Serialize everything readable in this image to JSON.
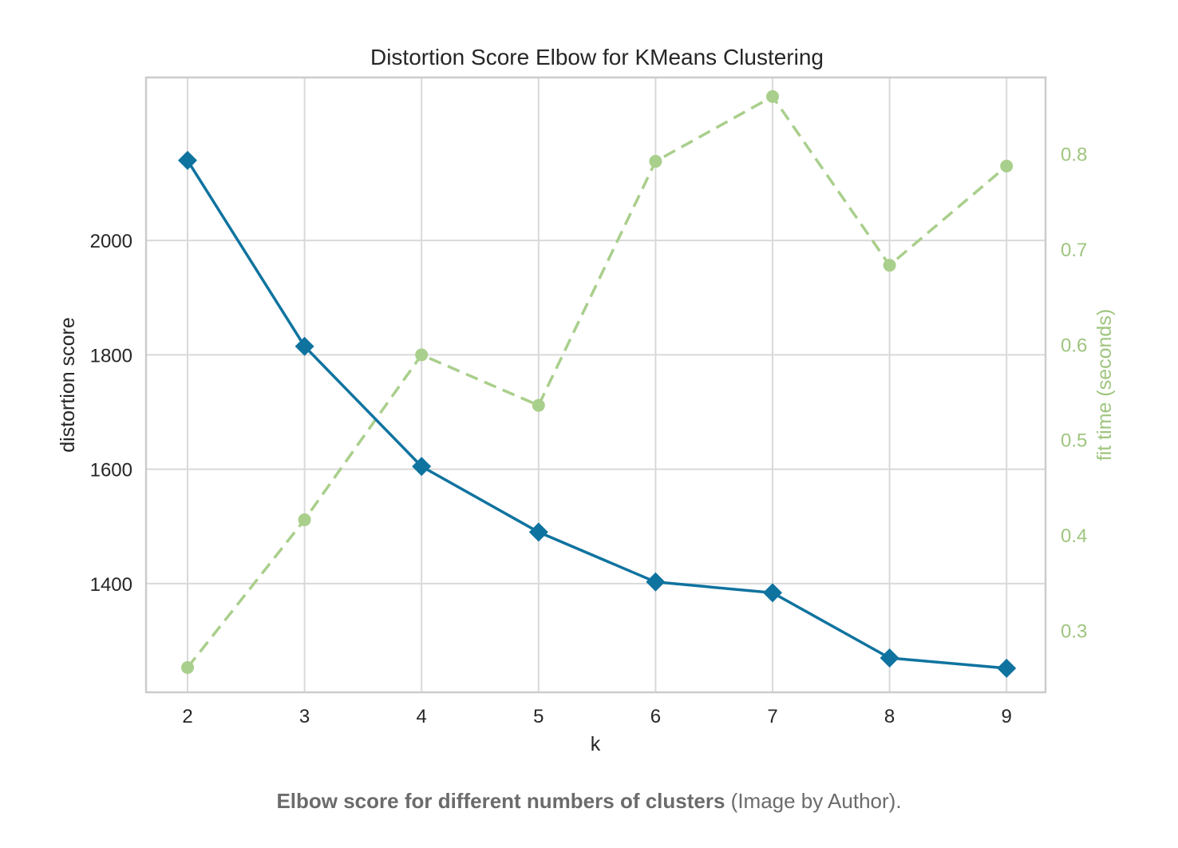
{
  "chart_data": {
    "type": "line",
    "title": "Distortion Score Elbow for KMeans Clustering",
    "xlabel": "k",
    "ylabel": "distortion score",
    "y2label": "fit time (seconds)",
    "x": [
      2,
      3,
      4,
      5,
      6,
      7,
      8,
      9
    ],
    "xticks": [
      "2",
      "3",
      "4",
      "5",
      "6",
      "7",
      "8",
      "9"
    ],
    "ylim": [
      1210,
      2285
    ],
    "yticks": [
      1400,
      1600,
      1800,
      2000
    ],
    "y2lim": [
      0.235,
      0.88
    ],
    "y2ticks": [
      0.3,
      0.4,
      0.5,
      0.6,
      0.7,
      0.8
    ],
    "grid": true,
    "series": [
      {
        "axis": "left",
        "values": [
          2140,
          1815,
          1605,
          1490,
          1403,
          1384,
          1270,
          1252
        ],
        "color": "#0f739f",
        "marker": "diamond",
        "linestyle": "solid"
      },
      {
        "axis": "right",
        "values": [
          0.261,
          0.416,
          0.589,
          0.536,
          0.792,
          0.86,
          0.683,
          0.787
        ],
        "color": "#a9cf8c",
        "marker": "circle",
        "linestyle": "dashed"
      }
    ]
  },
  "caption": {
    "bold": "Elbow score for different numbers of clusters",
    "rest": " (Image by Author)."
  }
}
